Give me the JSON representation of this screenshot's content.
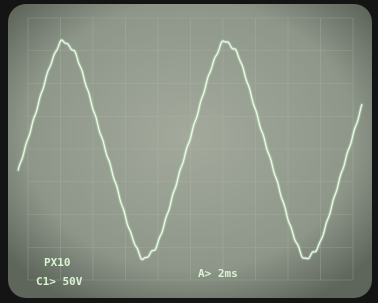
{
  "screen": {
    "probe": "PX10",
    "channel_scale": "C1> 50V",
    "time_scale": "A> 2ms"
  }
}
